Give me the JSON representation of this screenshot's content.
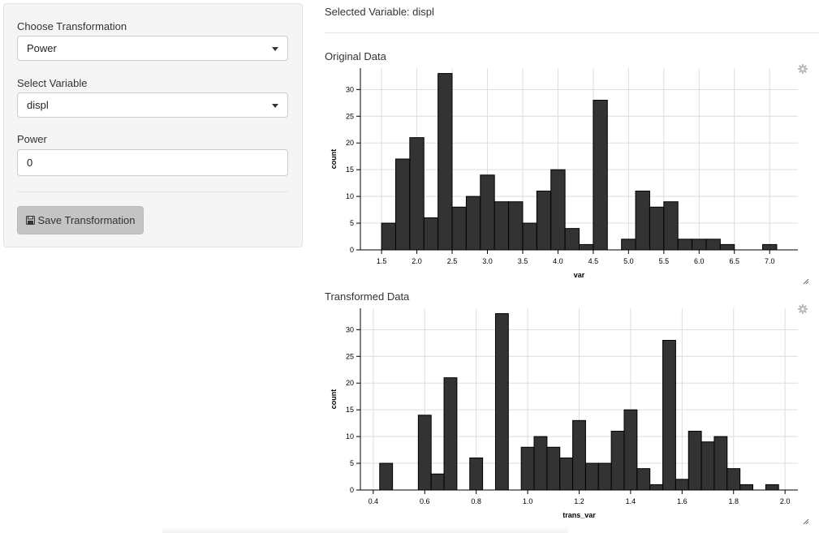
{
  "sidebar": {
    "transform_label": "Choose Transformation",
    "transform_value": "Power",
    "variable_label": "Select Variable",
    "variable_value": "displ",
    "power_label": "Power",
    "power_value": "0",
    "save_label": "Save Transformation"
  },
  "main": {
    "selected_variable": "Selected Variable: displ",
    "original_title": "Original Data",
    "transformed_title": "Transformed Data"
  },
  "colors": {
    "bar_fill": "#333333",
    "bar_stroke": "#000000",
    "grid": "#dddddd",
    "sidebar_bg": "#f5f5f5",
    "button_bg": "#c4c4c4"
  },
  "icons": {
    "settings": "gear-icon",
    "resize": "resize-handle-icon",
    "save": "floppy-disk-icon"
  },
  "chart_data": [
    {
      "type": "bar",
      "title": "Original Data",
      "xlabel": "var",
      "ylabel": "count",
      "xlim": [
        1.2,
        7.4
      ],
      "ylim": [
        0,
        34
      ],
      "bin_width": 0.2,
      "xticks": [
        1.5,
        2.0,
        2.5,
        3.0,
        3.5,
        4.0,
        4.5,
        5.0,
        5.5,
        6.0,
        6.5,
        7.0
      ],
      "yticks": [
        0,
        5,
        10,
        15,
        20,
        25,
        30
      ],
      "bins": [
        {
          "x0": 1.5,
          "x1": 1.7,
          "count": 5
        },
        {
          "x0": 1.7,
          "x1": 1.9,
          "count": 17
        },
        {
          "x0": 1.9,
          "x1": 2.1,
          "count": 21
        },
        {
          "x0": 2.1,
          "x1": 2.3,
          "count": 6
        },
        {
          "x0": 2.3,
          "x1": 2.5,
          "count": 33
        },
        {
          "x0": 2.5,
          "x1": 2.7,
          "count": 8
        },
        {
          "x0": 2.7,
          "x1": 2.9,
          "count": 10
        },
        {
          "x0": 2.9,
          "x1": 3.1,
          "count": 14
        },
        {
          "x0": 3.1,
          "x1": 3.3,
          "count": 9
        },
        {
          "x0": 3.3,
          "x1": 3.5,
          "count": 9
        },
        {
          "x0": 3.5,
          "x1": 3.7,
          "count": 5
        },
        {
          "x0": 3.7,
          "x1": 3.9,
          "count": 11
        },
        {
          "x0": 3.9,
          "x1": 4.1,
          "count": 15
        },
        {
          "x0": 4.1,
          "x1": 4.3,
          "count": 4
        },
        {
          "x0": 4.3,
          "x1": 4.5,
          "count": 1
        },
        {
          "x0": 4.5,
          "x1": 4.7,
          "count": 28
        },
        {
          "x0": 4.9,
          "x1": 5.1,
          "count": 2
        },
        {
          "x0": 5.1,
          "x1": 5.3,
          "count": 11
        },
        {
          "x0": 5.3,
          "x1": 5.5,
          "count": 8
        },
        {
          "x0": 5.5,
          "x1": 5.7,
          "count": 9
        },
        {
          "x0": 5.7,
          "x1": 5.9,
          "count": 2
        },
        {
          "x0": 5.9,
          "x1": 6.1,
          "count": 2
        },
        {
          "x0": 6.1,
          "x1": 6.3,
          "count": 2
        },
        {
          "x0": 6.3,
          "x1": 6.5,
          "count": 1
        },
        {
          "x0": 6.9,
          "x1": 7.1,
          "count": 1
        }
      ]
    },
    {
      "type": "bar",
      "title": "Transformed Data",
      "xlabel": "trans_var",
      "ylabel": "count",
      "xlim": [
        0.35,
        2.05
      ],
      "ylim": [
        0,
        34
      ],
      "bin_width": 0.05,
      "xticks": [
        0.4,
        0.6,
        0.8,
        1.0,
        1.2,
        1.4,
        1.6,
        1.8,
        2.0
      ],
      "yticks": [
        0,
        5,
        10,
        15,
        20,
        25,
        30
      ],
      "bins": [
        {
          "x0": 0.425,
          "x1": 0.475,
          "count": 5
        },
        {
          "x0": 0.575,
          "x1": 0.625,
          "count": 14
        },
        {
          "x0": 0.625,
          "x1": 0.675,
          "count": 3
        },
        {
          "x0": 0.675,
          "x1": 0.725,
          "count": 21
        },
        {
          "x0": 0.775,
          "x1": 0.825,
          "count": 6
        },
        {
          "x0": 0.875,
          "x1": 0.925,
          "count": 33
        },
        {
          "x0": 0.975,
          "x1": 1.025,
          "count": 8
        },
        {
          "x0": 1.025,
          "x1": 1.075,
          "count": 10
        },
        {
          "x0": 1.075,
          "x1": 1.125,
          "count": 8
        },
        {
          "x0": 1.125,
          "x1": 1.175,
          "count": 6
        },
        {
          "x0": 1.175,
          "x1": 1.225,
          "count": 13
        },
        {
          "x0": 1.225,
          "x1": 1.275,
          "count": 5
        },
        {
          "x0": 1.275,
          "x1": 1.325,
          "count": 5
        },
        {
          "x0": 1.325,
          "x1": 1.375,
          "count": 11
        },
        {
          "x0": 1.375,
          "x1": 1.425,
          "count": 15
        },
        {
          "x0": 1.425,
          "x1": 1.475,
          "count": 4
        },
        {
          "x0": 1.475,
          "x1": 1.525,
          "count": 1
        },
        {
          "x0": 1.525,
          "x1": 1.575,
          "count": 28
        },
        {
          "x0": 1.575,
          "x1": 1.625,
          "count": 2
        },
        {
          "x0": 1.625,
          "x1": 1.675,
          "count": 11
        },
        {
          "x0": 1.675,
          "x1": 1.725,
          "count": 9
        },
        {
          "x0": 1.725,
          "x1": 1.775,
          "count": 10
        },
        {
          "x0": 1.775,
          "x1": 1.825,
          "count": 4
        },
        {
          "x0": 1.825,
          "x1": 1.875,
          "count": 1
        },
        {
          "x0": 1.925,
          "x1": 1.975,
          "count": 1
        }
      ]
    }
  ]
}
